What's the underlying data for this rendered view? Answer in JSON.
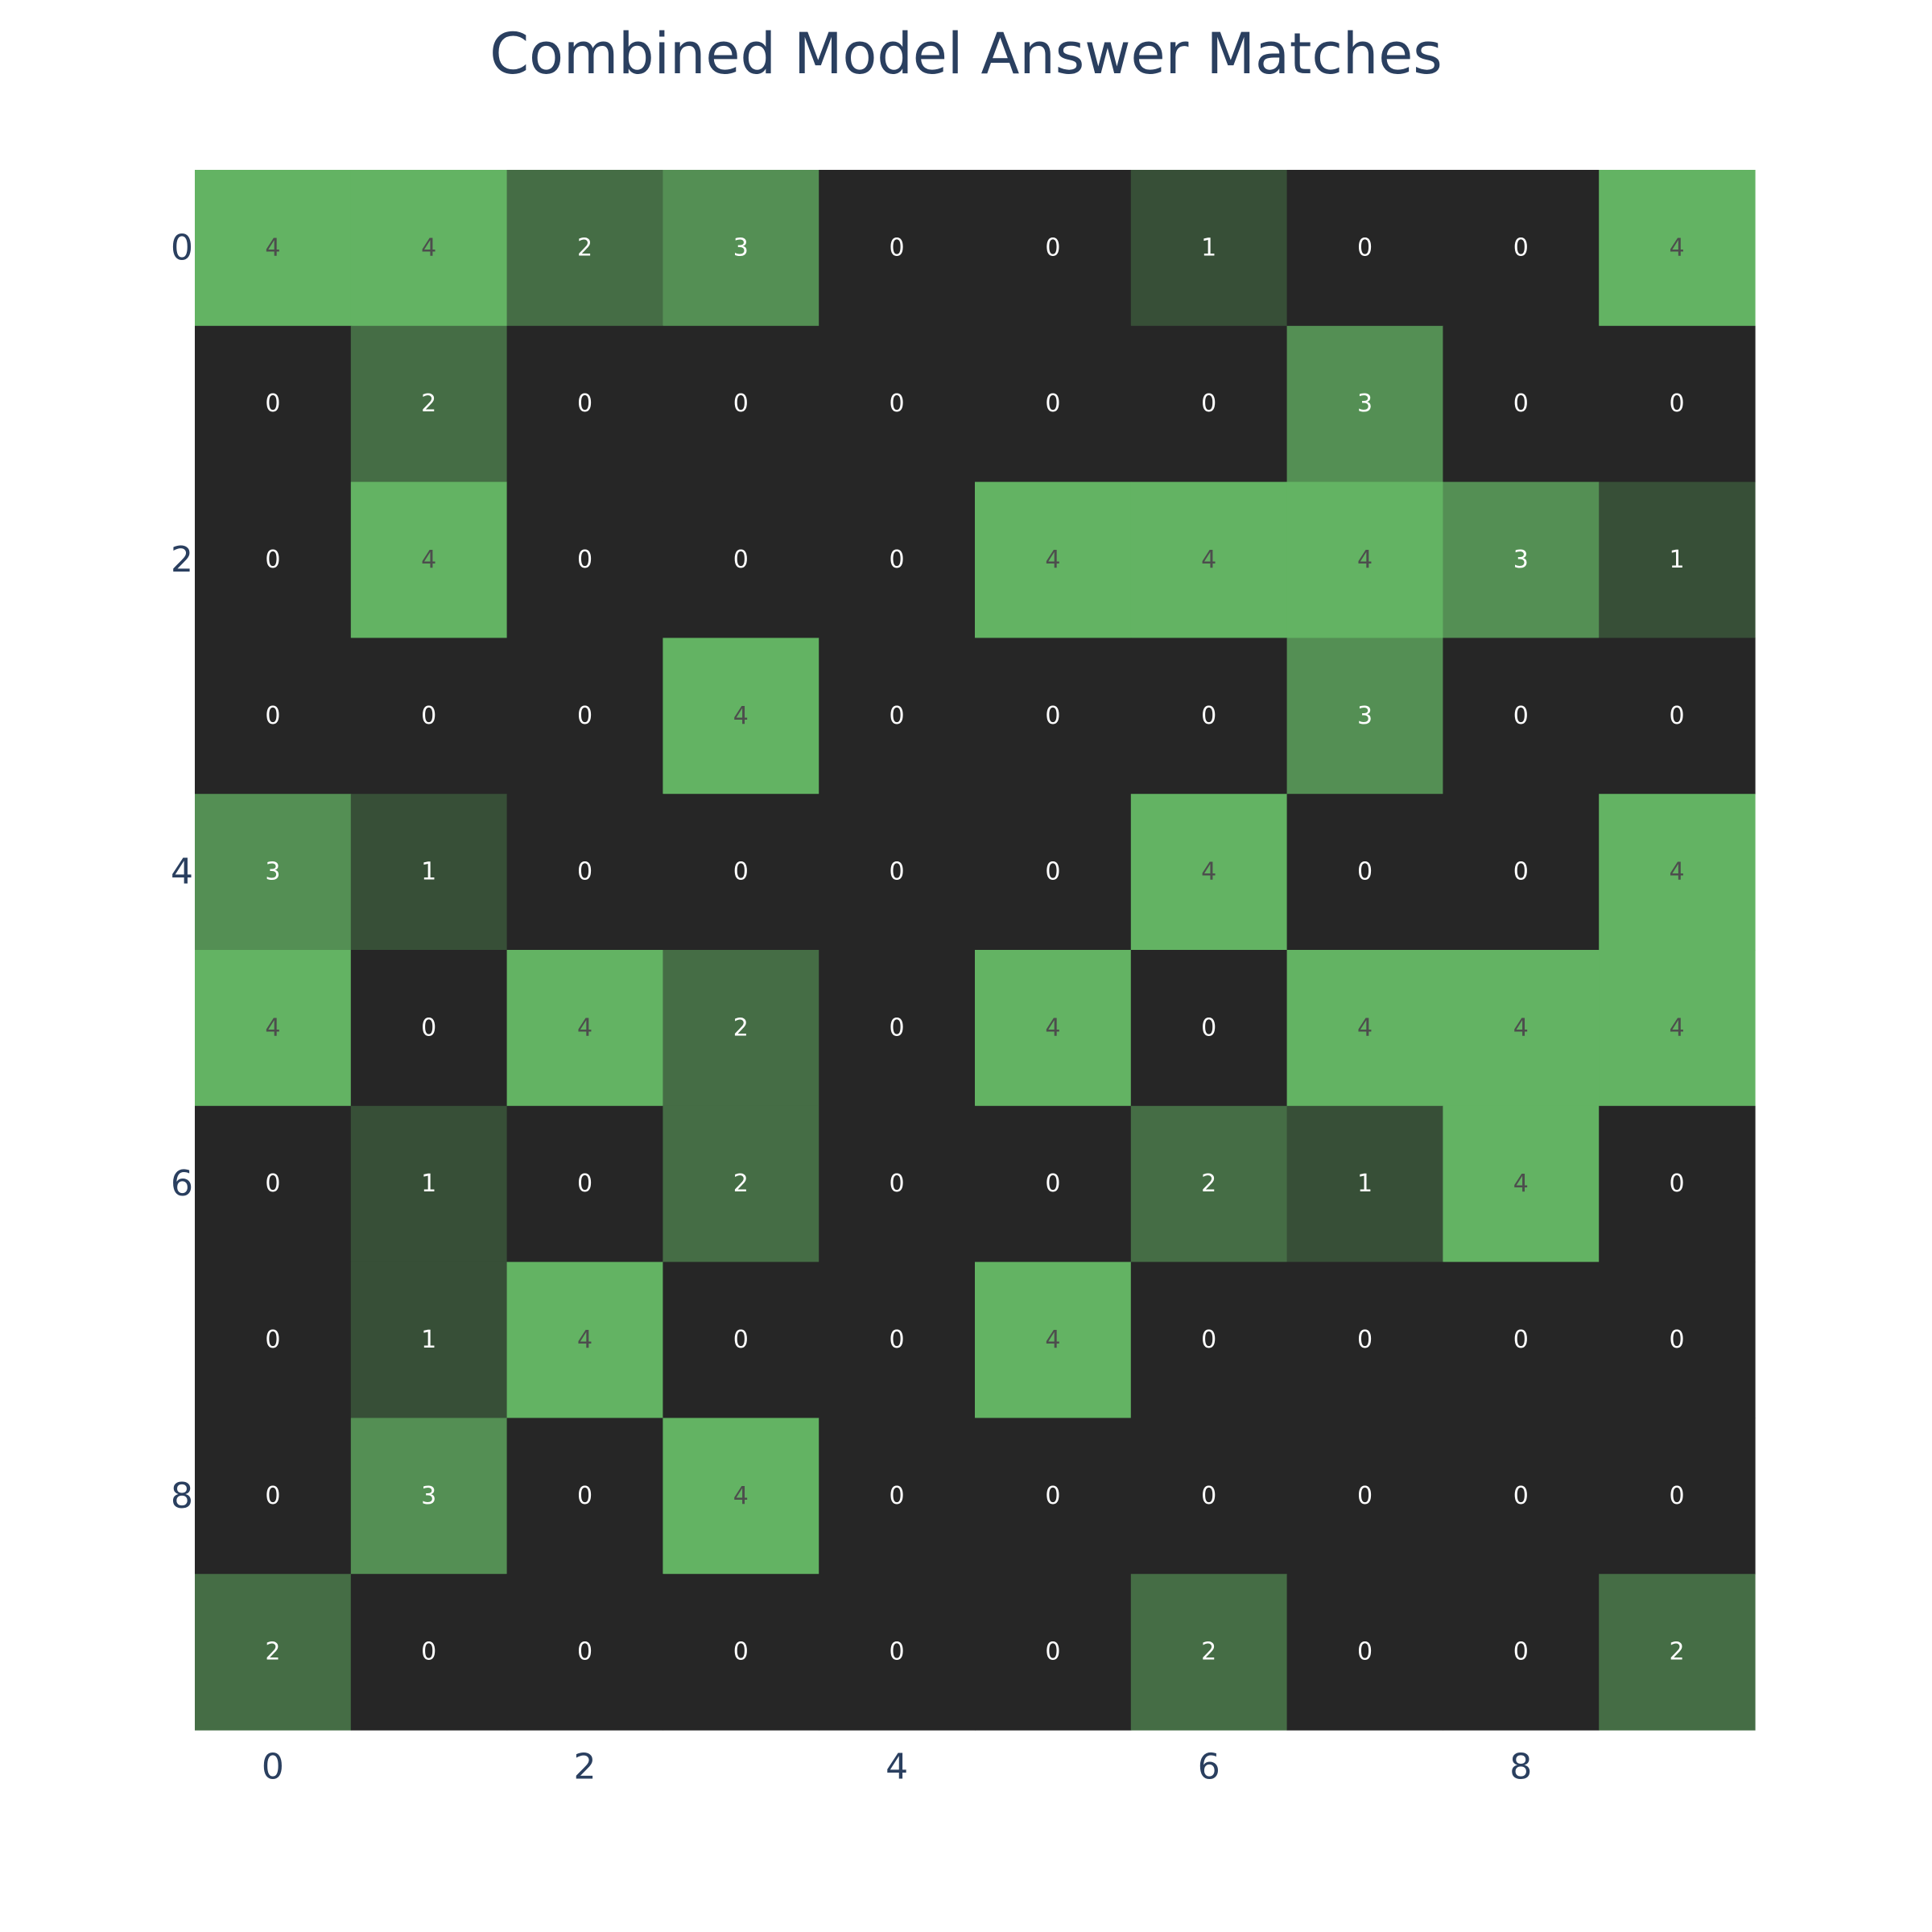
{
  "chart_data": {
    "type": "heatmap",
    "title": "Combined Model Answer Matches",
    "xlabel": "",
    "ylabel": "",
    "x": [
      0,
      1,
      2,
      3,
      4,
      5,
      6,
      7,
      8,
      9
    ],
    "y": [
      0,
      1,
      2,
      3,
      4,
      5,
      6,
      7,
      8,
      9
    ],
    "x_tick_labels": [
      "0",
      "2",
      "4",
      "6",
      "8"
    ],
    "y_tick_labels": [
      "0",
      "2",
      "4",
      "6",
      "8"
    ],
    "x_tick_values": [
      0,
      2,
      4,
      6,
      8
    ],
    "y_tick_values": [
      0,
      2,
      4,
      6,
      8
    ],
    "zmin": 0,
    "zmax": 4,
    "y_axis_reversed": true,
    "show_grid": false,
    "show_colorbar": false,
    "colorscale": [
      "#262626",
      "#374f37",
      "#456d45",
      "#548f54",
      "#63b363"
    ],
    "text_colors": {
      "light": "#ffffff",
      "dark": "#4d4d4d"
    },
    "z": [
      [
        4,
        4,
        2,
        3,
        0,
        0,
        1,
        0,
        0,
        4
      ],
      [
        0,
        2,
        0,
        0,
        0,
        0,
        0,
        3,
        0,
        0
      ],
      [
        0,
        4,
        0,
        0,
        0,
        4,
        4,
        4,
        3,
        1
      ],
      [
        0,
        0,
        0,
        4,
        0,
        0,
        0,
        3,
        0,
        0
      ],
      [
        3,
        1,
        0,
        0,
        0,
        0,
        4,
        0,
        0,
        4
      ],
      [
        4,
        0,
        4,
        2,
        0,
        4,
        0,
        4,
        4,
        4
      ],
      [
        0,
        1,
        0,
        2,
        0,
        0,
        2,
        1,
        4,
        0
      ],
      [
        0,
        1,
        4,
        0,
        0,
        4,
        0,
        0,
        0,
        0
      ],
      [
        0,
        3,
        0,
        4,
        0,
        0,
        0,
        0,
        0,
        0
      ],
      [
        2,
        0,
        0,
        0,
        0,
        0,
        2,
        0,
        0,
        2
      ]
    ]
  }
}
